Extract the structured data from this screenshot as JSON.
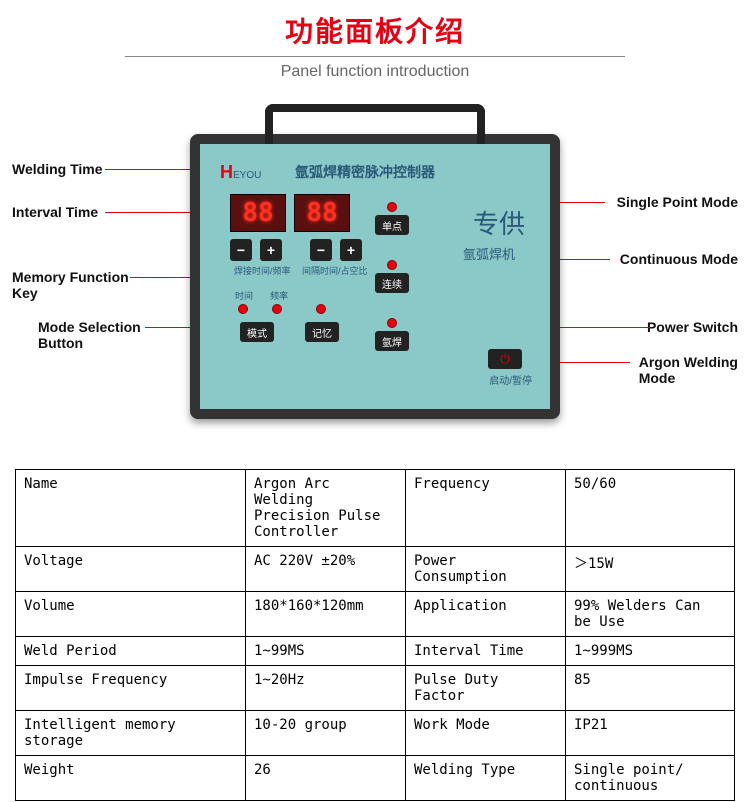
{
  "header": {
    "title_cn": "功能面板介绍",
    "title_en": "Panel function introduction"
  },
  "device": {
    "brand_letter": "H",
    "brand_text": "EYOU",
    "title": "氩弧焊精密脉冲控制器",
    "display1": "88",
    "display2": "88",
    "minus": "−",
    "plus": "+",
    "weld_time_label": "焊接时间/频率",
    "interval_label": "间隔时间/占空比",
    "time_label": "时间",
    "freq_label": "频率",
    "mode_btn": "模式",
    "memory_btn": "记忆",
    "single_btn": "单点",
    "continuous_btn": "连续",
    "argon_btn": "氩焊",
    "brand_zh": "专供",
    "brand_sub": "氩弧焊机",
    "power_label": "启动/暂停"
  },
  "callouts": {
    "welding_time": "Welding Time",
    "interval_time": "Interval Time",
    "memory_key": "Memory Function\nKey",
    "mode_button": "Mode Selection\nButton",
    "single_point": "Single Point Mode",
    "continuous": "Continuous Mode",
    "power_switch": "Power Switch",
    "argon_mode": "Argon Welding\nMode"
  },
  "spec": {
    "rows": [
      [
        [
          "Name"
        ],
        [
          "Argon Arc Welding\nPrecision Pulse Controller"
        ],
        [
          "Frequency"
        ],
        [
          "50/60"
        ]
      ],
      [
        [
          "Voltage"
        ],
        [
          "AC 220V ±20%"
        ],
        [
          "Power Consumption"
        ],
        [
          "＞15W"
        ]
      ],
      [
        [
          "Volume"
        ],
        [
          "180*160*120mm"
        ],
        [
          "Application"
        ],
        [
          "99% Welders Can\nbe Use"
        ]
      ],
      [
        [
          "Weld Period"
        ],
        [
          "1~99MS"
        ],
        [
          "Interval Time"
        ],
        [
          "1~999MS"
        ]
      ],
      [
        [
          "Impulse Frequency"
        ],
        [
          "1~20Hz"
        ],
        [
          "Pulse Duty Factor"
        ],
        [
          "85"
        ]
      ],
      [
        [
          "Intelligent memory storage"
        ],
        [
          "10-20 group"
        ],
        [
          "Work Mode"
        ],
        [
          "IP21"
        ]
      ],
      [
        [
          "Weight"
        ],
        [
          "26"
        ],
        [
          "Welding Type"
        ],
        [
          "Single point/\ncontinuous"
        ]
      ]
    ]
  },
  "colors": {
    "accent": "#e60012",
    "device_bg": "#8bc8c8",
    "device_text": "#2a5a7a",
    "led": "#ff3020"
  }
}
